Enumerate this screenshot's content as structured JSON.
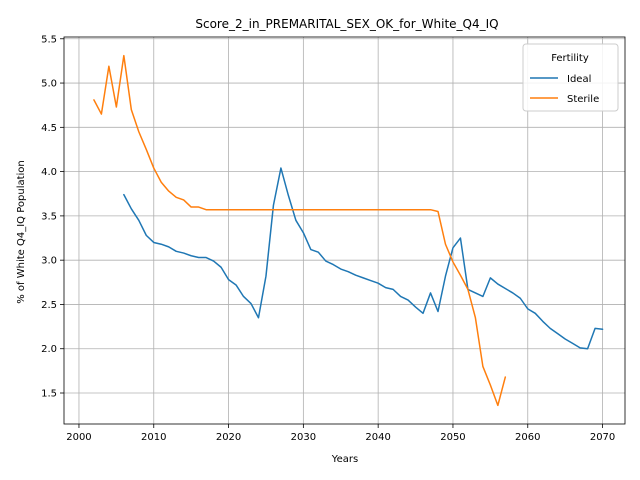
{
  "chart_data": {
    "type": "line",
    "title": "Score_2_in_PREMARITAL_SEX_OK_for_White_Q4_IQ",
    "xlabel": "Years",
    "ylabel": "% of White Q4_IQ Population",
    "xlim": [
      1998,
      2073
    ],
    "ylim": [
      1.15,
      5.52
    ],
    "x_ticks": [
      2000,
      2010,
      2020,
      2030,
      2040,
      2050,
      2060,
      2070
    ],
    "y_ticks": [
      1.5,
      2.0,
      2.5,
      3.0,
      3.5,
      4.0,
      4.5,
      5.0,
      5.5
    ],
    "grid": true,
    "legend": {
      "title": "Fertility",
      "position": "top-right"
    },
    "series": [
      {
        "name": "Ideal",
        "color": "#1f77b4",
        "x": [
          2006,
          2007,
          2008,
          2009,
          2010,
          2011,
          2012,
          2013,
          2014,
          2015,
          2016,
          2017,
          2018,
          2019,
          2020,
          2021,
          2022,
          2023,
          2024,
          2025,
          2026,
          2027,
          2028,
          2029,
          2030,
          2031,
          2032,
          2033,
          2034,
          2035,
          2036,
          2037,
          2038,
          2039,
          2040,
          2041,
          2042,
          2043,
          2044,
          2045,
          2046,
          2047,
          2048,
          2049,
          2050,
          2051,
          2052,
          2053,
          2054,
          2055,
          2056,
          2057,
          2058,
          2059,
          2060,
          2061,
          2062,
          2063,
          2064,
          2065,
          2066,
          2067,
          2068,
          2069,
          2070
        ],
        "y": [
          3.74,
          3.58,
          3.45,
          3.28,
          3.2,
          3.18,
          3.15,
          3.1,
          3.08,
          3.05,
          3.03,
          3.03,
          2.99,
          2.92,
          2.78,
          2.72,
          2.59,
          2.51,
          2.35,
          2.82,
          3.62,
          4.04,
          3.73,
          3.45,
          3.31,
          3.12,
          3.09,
          2.99,
          2.95,
          2.9,
          2.87,
          2.83,
          2.8,
          2.77,
          2.74,
          2.69,
          2.67,
          2.59,
          2.55,
          2.47,
          2.4,
          2.63,
          2.42,
          2.82,
          3.14,
          3.25,
          2.67,
          2.63,
          2.59,
          2.8,
          2.73,
          2.68,
          2.63,
          2.57,
          2.45,
          2.4,
          2.31,
          2.23,
          2.17,
          2.11,
          2.06,
          2.01,
          2.0,
          2.23,
          2.22
        ]
      },
      {
        "name": "Sterile",
        "color": "#ff7f0e",
        "x": [
          2002,
          2003,
          2004,
          2005,
          2006,
          2007,
          2008,
          2009,
          2010,
          2011,
          2012,
          2013,
          2014,
          2015,
          2016,
          2017,
          2018,
          2019,
          2020,
          2021,
          2022,
          2023,
          2024,
          2025,
          2026,
          2027,
          2028,
          2029,
          2030,
          2031,
          2032,
          2033,
          2034,
          2035,
          2036,
          2037,
          2038,
          2039,
          2040,
          2041,
          2042,
          2043,
          2044,
          2045,
          2046,
          2047,
          2048,
          2049,
          2050,
          2051,
          2052,
          2053,
          2054,
          2055,
          2056,
          2057
        ],
        "y": [
          4.81,
          4.65,
          5.19,
          4.73,
          5.31,
          4.7,
          4.45,
          4.25,
          4.04,
          3.88,
          3.78,
          3.71,
          3.68,
          3.6,
          3.6,
          3.57,
          3.57,
          3.57,
          3.57,
          3.57,
          3.57,
          3.57,
          3.57,
          3.57,
          3.57,
          3.57,
          3.57,
          3.57,
          3.57,
          3.57,
          3.57,
          3.57,
          3.57,
          3.57,
          3.57,
          3.57,
          3.57,
          3.57,
          3.57,
          3.57,
          3.57,
          3.57,
          3.57,
          3.57,
          3.57,
          3.57,
          3.55,
          3.18,
          2.98,
          2.83,
          2.67,
          2.35,
          1.8,
          1.59,
          1.36,
          1.68
        ]
      }
    ]
  }
}
